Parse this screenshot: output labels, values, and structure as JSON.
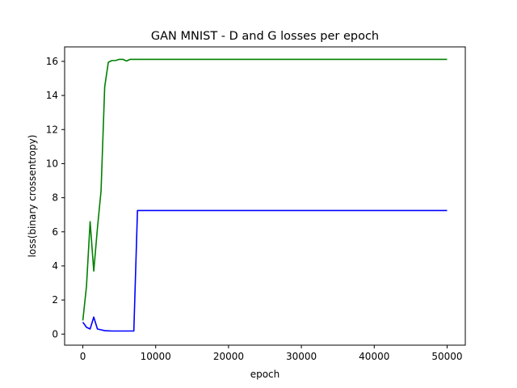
{
  "chart_data": {
    "type": "line",
    "title": "GAN MNIST - D and G losses per epoch",
    "xlabel": "epoch",
    "ylabel": "loss(binary crossentropy)",
    "xlim": [
      -2500,
      52500
    ],
    "ylim": [
      -0.65,
      16.85
    ],
    "xticks": [
      0,
      10000,
      20000,
      30000,
      40000,
      50000
    ],
    "xtick_labels": [
      "0",
      "10000",
      "20000",
      "30000",
      "40000",
      "50000"
    ],
    "yticks": [
      0,
      2,
      4,
      6,
      8,
      10,
      12,
      14,
      16
    ],
    "ytick_labels": [
      "0",
      "2",
      "4",
      "6",
      "8",
      "10",
      "12",
      "14",
      "16"
    ],
    "grid": false,
    "series": [
      {
        "color": "#0000ff",
        "x": [
          0,
          500,
          1000,
          1500,
          2000,
          2500,
          3000,
          3500,
          4000,
          4500,
          5000,
          5500,
          6000,
          6500,
          7000,
          7500,
          8000,
          50000
        ],
        "y": [
          0.7,
          0.4,
          0.3,
          1.0,
          0.3,
          0.25,
          0.2,
          0.19,
          0.18,
          0.18,
          0.18,
          0.18,
          0.18,
          0.18,
          0.18,
          7.25,
          7.25,
          7.25
        ]
      },
      {
        "color": "#008000",
        "x": [
          0,
          500,
          1000,
          1500,
          2000,
          2500,
          3000,
          3500,
          4000,
          4500,
          5000,
          5500,
          6000,
          6500,
          7000,
          50000
        ],
        "y": [
          0.8,
          2.8,
          6.6,
          3.7,
          6.2,
          8.4,
          14.5,
          15.95,
          16.05,
          16.05,
          16.12,
          16.12,
          16.02,
          16.12,
          16.12,
          16.12
        ]
      }
    ]
  }
}
